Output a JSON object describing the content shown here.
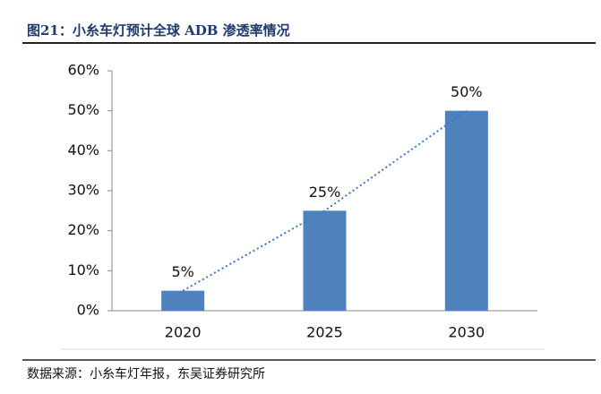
{
  "chart_data": {
    "type": "bar",
    "title": "图21：小糸车灯预计全球 ADB 渗透率情况",
    "source": "数据来源：小糸车灯年报，东吴证券研究所",
    "categories": [
      "2020",
      "2025",
      "2030"
    ],
    "values": [
      5,
      25,
      50
    ],
    "value_labels": [
      "5%",
      "25%",
      "50%"
    ],
    "color": "#4f81bd",
    "trendline": true,
    "trendline_color": "#3b78c8",
    "ylim": [
      0,
      60
    ],
    "yticks": [
      {
        "value": 0,
        "label": "0%"
      },
      {
        "value": 10,
        "label": "10%"
      },
      {
        "value": 20,
        "label": "20%"
      },
      {
        "value": 30,
        "label": "30%"
      },
      {
        "value": 40,
        "label": "40%"
      },
      {
        "value": 50,
        "label": "50%"
      },
      {
        "value": 60,
        "label": "60%"
      }
    ]
  }
}
